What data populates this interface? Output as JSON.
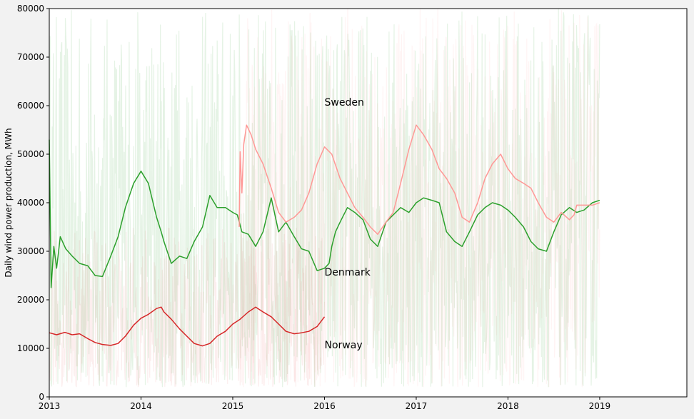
{
  "chart_data": {
    "type": "line",
    "title": "",
    "xlabel": "",
    "ylabel": "Daily wind power production, MWh",
    "xlim": [
      2013,
      2019.95
    ],
    "ylim": [
      0,
      80000
    ],
    "x_ticks": [
      2013,
      2014,
      2015,
      2016,
      2017,
      2018,
      2019
    ],
    "x_tick_labels": [
      "2013",
      "2014",
      "2015",
      "2016",
      "2017",
      "2018",
      "2019"
    ],
    "y_ticks": [
      0,
      10000,
      20000,
      30000,
      40000,
      50000,
      60000,
      70000,
      80000
    ],
    "y_tick_labels": [
      "0",
      "10000",
      "20000",
      "30000",
      "40000",
      "50000",
      "60000",
      "70000",
      "80000"
    ],
    "grid": false,
    "legend": "none",
    "annotations": [
      {
        "text": "Sweden",
        "x": 2016.0,
        "y": 60000
      },
      {
        "text": "Denmark",
        "x": 2016.0,
        "y": 25000
      },
      {
        "text": "Norway",
        "x": 2016.0,
        "y": 10000
      }
    ],
    "series": [
      {
        "color": "#2ca02c",
        "style": "rolling-mean",
        "x": [
          2013.0,
          2013.02,
          2013.05,
          2013.08,
          2013.12,
          2013.18,
          2013.25,
          2013.33,
          2013.42,
          2013.5,
          2013.58,
          2013.67,
          2013.75,
          2013.83,
          2013.92,
          2014.0,
          2014.08,
          2014.17,
          2014.22,
          2014.25,
          2014.33,
          2014.42,
          2014.5,
          2014.58,
          2014.67,
          2014.75,
          2014.83,
          2014.92,
          2015.0,
          2015.05,
          2015.1,
          2015.17,
          2015.25,
          2015.33,
          2015.42,
          2015.5,
          2015.58,
          2015.67,
          2015.75,
          2015.83,
          2015.92,
          2016.0,
          2016.05,
          2016.08,
          2016.12,
          2016.17,
          2016.25,
          2016.33,
          2016.42,
          2016.5,
          2016.58,
          2016.67,
          2016.75,
          2016.83,
          2016.92,
          2017.0,
          2017.08,
          2017.17,
          2017.25,
          2017.33,
          2017.42,
          2017.5,
          2017.58,
          2017.67,
          2017.75,
          2017.83,
          2017.92,
          2018.0,
          2018.08,
          2018.17,
          2018.25,
          2018.33,
          2018.42,
          2018.5,
          2018.58,
          2018.67,
          2018.75,
          2018.83,
          2018.92,
          2019.0
        ],
        "values": [
          53000,
          22500,
          31000,
          26500,
          33000,
          30500,
          29000,
          27500,
          27000,
          25000,
          24800,
          29000,
          33000,
          39000,
          44000,
          46500,
          44000,
          37000,
          34000,
          32000,
          27500,
          29000,
          28500,
          32000,
          35000,
          41500,
          39000,
          39000,
          38000,
          37500,
          34000,
          33500,
          31000,
          34000,
          41000,
          34000,
          36000,
          33000,
          30500,
          30000,
          26000,
          26500,
          27500,
          31000,
          34000,
          36000,
          39000,
          38000,
          36500,
          32500,
          31000,
          36000,
          37500,
          39000,
          38000,
          40000,
          41000,
          40500,
          40000,
          34000,
          32000,
          31000,
          34000,
          37500,
          39000,
          40000,
          39500,
          38500,
          37000,
          35000,
          32000,
          30500,
          30000,
          34000,
          37500,
          39000,
          38000,
          38500,
          40000,
          40500
        ]
      },
      {
        "color": "#ff9896",
        "style": "rolling-mean",
        "x": [
          2015.07,
          2015.08,
          2015.1,
          2015.12,
          2015.15,
          2015.2,
          2015.25,
          2015.33,
          2015.42,
          2015.5,
          2015.58,
          2015.67,
          2015.75,
          2015.83,
          2015.92,
          2016.0,
          2016.08,
          2016.17,
          2016.25,
          2016.33,
          2016.42,
          2016.5,
          2016.58,
          2016.67,
          2016.75,
          2016.83,
          2016.92,
          2017.0,
          2017.08,
          2017.17,
          2017.25,
          2017.33,
          2017.42,
          2017.5,
          2017.58,
          2017.67,
          2017.75,
          2017.83,
          2017.92,
          2018.0,
          2018.08,
          2018.17,
          2018.25,
          2018.33,
          2018.42,
          2018.5,
          2018.58,
          2018.67,
          2018.72,
          2018.75,
          2018.83,
          2018.92,
          2019.0
        ],
        "values": [
          35000,
          50500,
          42000,
          52000,
          56000,
          54000,
          51000,
          48000,
          43000,
          38000,
          36000,
          37000,
          38500,
          42000,
          48000,
          51500,
          50000,
          45000,
          42000,
          39000,
          37000,
          35000,
          33500,
          36000,
          38000,
          44000,
          51000,
          56000,
          54000,
          51000,
          47000,
          45000,
          42000,
          37000,
          36000,
          40000,
          45000,
          48000,
          50000,
          47000,
          45000,
          44000,
          43000,
          40000,
          37000,
          36000,
          38000,
          36500,
          37500,
          39500,
          39500,
          39500,
          40000
        ]
      },
      {
        "color": "#d62728",
        "style": "rolling-mean",
        "x": [
          2013.0,
          2013.08,
          2013.17,
          2013.25,
          2013.33,
          2013.42,
          2013.5,
          2013.58,
          2013.67,
          2013.75,
          2013.83,
          2013.92,
          2014.0,
          2014.08,
          2014.17,
          2014.22,
          2014.25,
          2014.33,
          2014.42,
          2014.5,
          2014.58,
          2014.67,
          2014.75,
          2014.83,
          2014.92,
          2015.0,
          2015.08,
          2015.17,
          2015.25,
          2015.33,
          2015.42,
          2015.5,
          2015.58,
          2015.67,
          2015.75,
          2015.83,
          2015.92,
          2016.0
        ],
        "values": [
          13200,
          12800,
          13300,
          12800,
          13000,
          12000,
          11200,
          10800,
          10600,
          11000,
          12500,
          14800,
          16200,
          17000,
          18200,
          18500,
          17500,
          16000,
          14000,
          12500,
          11000,
          10500,
          11000,
          12500,
          13500,
          15000,
          16000,
          17500,
          18500,
          17500,
          16500,
          15000,
          13500,
          13000,
          13200,
          13500,
          14500,
          16500
        ]
      }
    ],
    "background_noise_series": [
      {
        "color": "#2ca02c",
        "opacity": 0.12,
        "x_range": [
          2013.0,
          2019.0
        ],
        "range": [
          2000,
          80000
        ]
      },
      {
        "color": "#ff9896",
        "opacity": 0.1,
        "x_range": [
          2015.08,
          2019.0
        ],
        "range": [
          2000,
          80000
        ]
      },
      {
        "color": "#d62728",
        "opacity": 0.08,
        "x_range": [
          2013.0,
          2016.0
        ],
        "range": [
          2000,
          35000
        ]
      }
    ]
  }
}
